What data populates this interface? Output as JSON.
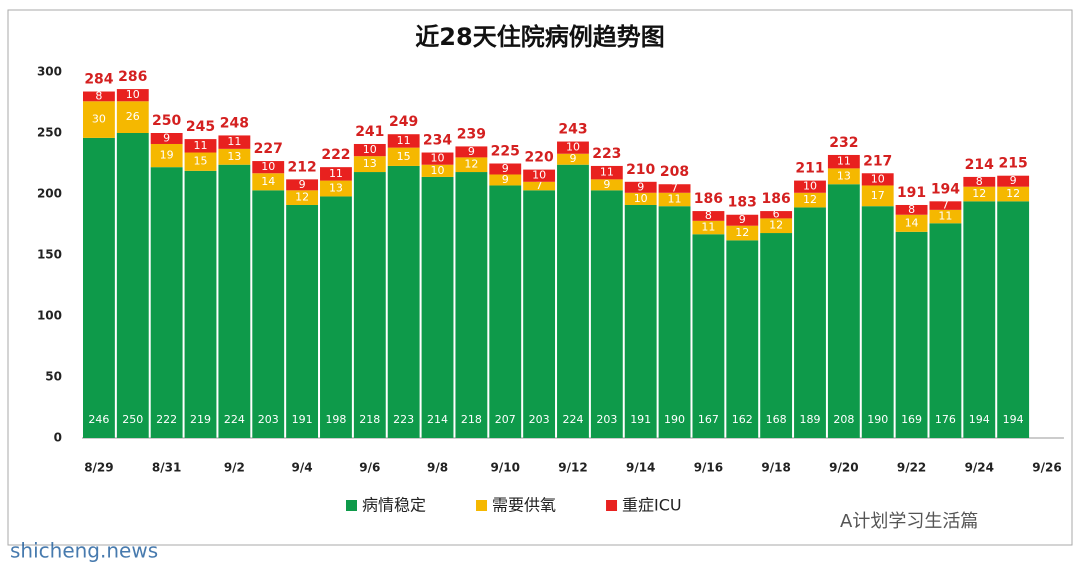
{
  "chart_data": {
    "type": "stacked_bar",
    "title": "近28天住院病例趋势图",
    "categories": [
      "8/29",
      null,
      "8/31",
      null,
      "9/2",
      null,
      "9/4",
      null,
      "9/6",
      null,
      "9/8",
      null,
      "9/10",
      null,
      "9/12",
      null,
      "9/14",
      null,
      "9/16",
      null,
      "9/18",
      null,
      "9/20",
      null,
      "9/22",
      null,
      "9/24",
      null,
      "9/26"
    ],
    "series": [
      {
        "name": "病情稳定",
        "color": "#0e9a4a",
        "values": [
          246,
          250,
          222,
          219,
          224,
          203,
          191,
          198,
          218,
          223,
          214,
          218,
          207,
          203,
          224,
          203,
          191,
          190,
          167,
          162,
          168,
          189,
          208,
          190,
          169,
          176,
          194,
          194,
          null
        ]
      },
      {
        "name": "需要供氧",
        "color": "#f5b800",
        "values": [
          30,
          26,
          19,
          15,
          13,
          14,
          12,
          13,
          13,
          15,
          10,
          12,
          9,
          7,
          9,
          9,
          10,
          11,
          11,
          12,
          12,
          12,
          13,
          17,
          14,
          11,
          12,
          12,
          null
        ]
      },
      {
        "name": "重症ICU",
        "color": "#e8211f",
        "values": [
          8,
          10,
          9,
          11,
          11,
          10,
          9,
          11,
          10,
          11,
          10,
          9,
          9,
          10,
          10,
          11,
          9,
          7,
          8,
          9,
          6,
          10,
          11,
          10,
          8,
          7,
          8,
          9,
          null
        ]
      }
    ],
    "totals": [
      284,
      286,
      250,
      245,
      248,
      227,
      212,
      222,
      241,
      249,
      234,
      239,
      225,
      220,
      243,
      223,
      210,
      208,
      186,
      183,
      186,
      211,
      232,
      217,
      191,
      194,
      214,
      215,
      null
    ],
    "ylim": [
      0,
      300
    ],
    "yticks": [
      0,
      50,
      100,
      150,
      200,
      250,
      300
    ],
    "legend": "bottom",
    "watermarks": [
      "shicheng.news",
      "A计划学习生活篇"
    ]
  }
}
